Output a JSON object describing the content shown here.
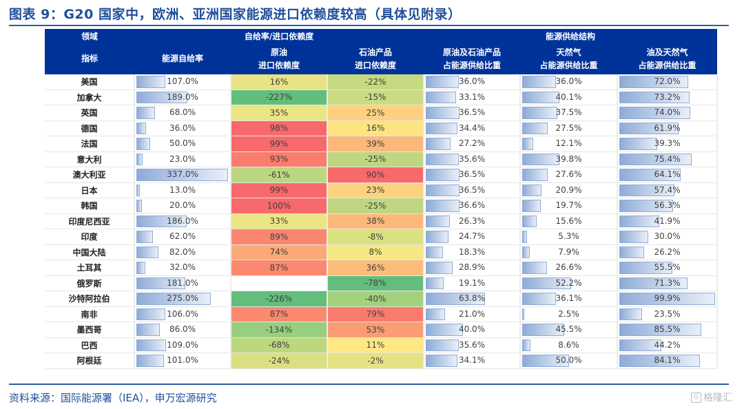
{
  "title": "图表 9：G20 国家中，欧洲、亚洲国家能源进口依赖度较高（具体见附录）",
  "header": {
    "row1": {
      "domain_label": "领域",
      "group1": "自给率/进口依赖度",
      "group2": "能源供给结构"
    },
    "row2": {
      "indicator_label": "指标",
      "columns": [
        {
          "line1": "能源自给率",
          "line2": ""
        },
        {
          "line1": "原油",
          "line2": "进口依赖度"
        },
        {
          "line1": "石油产品",
          "line2": "进口依赖度"
        },
        {
          "line1": "原油及石油产品",
          "line2": "占能源供给比重"
        },
        {
          "line1": "天然气",
          "line2": "占能源供给比重"
        },
        {
          "line1": "油及天然气",
          "line2": "占能源供给比重"
        }
      ]
    }
  },
  "rows": [
    {
      "country": "美国",
      "self_sufficiency": "107.0%",
      "crude_import": "16%",
      "products_import": "-22%",
      "oil_share": "36.0%",
      "gas_share": "36.0%",
      "oilgas_share": "72.0%"
    },
    {
      "country": "加拿大",
      "self_sufficiency": "189.0%",
      "crude_import": "-227%",
      "products_import": "-15%",
      "oil_share": "33.1%",
      "gas_share": "40.1%",
      "oilgas_share": "73.2%"
    },
    {
      "country": "英国",
      "self_sufficiency": "68.0%",
      "crude_import": "35%",
      "products_import": "25%",
      "oil_share": "36.5%",
      "gas_share": "37.5%",
      "oilgas_share": "74.0%"
    },
    {
      "country": "德国",
      "self_sufficiency": "36.0%",
      "crude_import": "98%",
      "products_import": "16%",
      "oil_share": "34.4%",
      "gas_share": "27.5%",
      "oilgas_share": "61.9%"
    },
    {
      "country": "法国",
      "self_sufficiency": "50.0%",
      "crude_import": "99%",
      "products_import": "39%",
      "oil_share": "27.2%",
      "gas_share": "12.1%",
      "oilgas_share": "39.3%"
    },
    {
      "country": "意大利",
      "self_sufficiency": "23.0%",
      "crude_import": "93%",
      "products_import": "-25%",
      "oil_share": "35.6%",
      "gas_share": "39.8%",
      "oilgas_share": "75.4%"
    },
    {
      "country": "澳大利亚",
      "self_sufficiency": "337.0%",
      "crude_import": "-61%",
      "products_import": "90%",
      "oil_share": "36.5%",
      "gas_share": "27.6%",
      "oilgas_share": "64.1%"
    },
    {
      "country": "日本",
      "self_sufficiency": "13.0%",
      "crude_import": "99%",
      "products_import": "23%",
      "oil_share": "36.5%",
      "gas_share": "20.9%",
      "oilgas_share": "57.4%"
    },
    {
      "country": "韩国",
      "self_sufficiency": "20.0%",
      "crude_import": "100%",
      "products_import": "-25%",
      "oil_share": "36.6%",
      "gas_share": "19.7%",
      "oilgas_share": "56.3%"
    },
    {
      "country": "印度尼西亚",
      "self_sufficiency": "186.0%",
      "crude_import": "33%",
      "products_import": "38%",
      "oil_share": "26.3%",
      "gas_share": "15.6%",
      "oilgas_share": "41.9%"
    },
    {
      "country": "印度",
      "self_sufficiency": "62.0%",
      "crude_import": "89%",
      "products_import": "-8%",
      "oil_share": "24.7%",
      "gas_share": "5.3%",
      "oilgas_share": "30.0%"
    },
    {
      "country": "中国大陆",
      "self_sufficiency": "82.0%",
      "crude_import": "74%",
      "products_import": "8%",
      "oil_share": "18.3%",
      "gas_share": "7.9%",
      "oilgas_share": "26.2%"
    },
    {
      "country": "土耳其",
      "self_sufficiency": "32.0%",
      "crude_import": "87%",
      "products_import": "36%",
      "oil_share": "28.9%",
      "gas_share": "26.6%",
      "oilgas_share": "55.5%"
    },
    {
      "country": "俄罗斯",
      "self_sufficiency": "181.0%",
      "crude_import": "",
      "products_import": "-78%",
      "oil_share": "19.1%",
      "gas_share": "52.2%",
      "oilgas_share": "71.3%"
    },
    {
      "country": "沙特阿拉伯",
      "self_sufficiency": "275.0%",
      "crude_import": "-226%",
      "products_import": "-40%",
      "oil_share": "63.8%",
      "gas_share": "36.1%",
      "oilgas_share": "99.9%"
    },
    {
      "country": "南非",
      "self_sufficiency": "106.0%",
      "crude_import": "87%",
      "products_import": "79%",
      "oil_share": "21.0%",
      "gas_share": "2.5%",
      "oilgas_share": "23.5%"
    },
    {
      "country": "墨西哥",
      "self_sufficiency": "86.0%",
      "crude_import": "-134%",
      "products_import": "53%",
      "oil_share": "40.0%",
      "gas_share": "45.5%",
      "oilgas_share": "85.5%"
    },
    {
      "country": "巴西",
      "self_sufficiency": "109.0%",
      "crude_import": "-68%",
      "products_import": "11%",
      "oil_share": "35.6%",
      "gas_share": "8.6%",
      "oilgas_share": "44.2%"
    },
    {
      "country": "阿根廷",
      "self_sufficiency": "101.0%",
      "crude_import": "-24%",
      "products_import": "-2%",
      "oil_share": "34.1%",
      "gas_share": "50.0%",
      "oilgas_share": "84.1%"
    }
  ],
  "heat_colors": {
    "crude_import": [
      "#E8E384",
      "#63BE7B",
      "#EBE583",
      "#F8696B",
      "#F8696B",
      "#F97D6E",
      "#BCD77F",
      "#F8696B",
      "#F8696B",
      "#ECE583",
      "#FA866F",
      "#FBA977",
      "#FA8970",
      "#FFFFFF",
      "#63BE7B",
      "#FA8970",
      "#98CE7F",
      "#BDD77F",
      "#DAE081"
    ],
    "products_import": [
      "#C4D980",
      "#CBDB81",
      "#FDD17F",
      "#FEE382",
      "#FCB77A",
      "#BED780",
      "#F8696B",
      "#FDD27F",
      "#BED780",
      "#FCB97A",
      "#DBE081",
      "#F5E783",
      "#FCBC7B",
      "#63BE7B",
      "#A3D17E",
      "#F97B6E",
      "#FA9D74",
      "#FFE884",
      "#E4E283"
    ]
  },
  "footer": {
    "source": "资料来源：国际能源署（IEA），申万宏源研究",
    "watermark": "格隆汇",
    "watermark_icon": "G"
  }
}
